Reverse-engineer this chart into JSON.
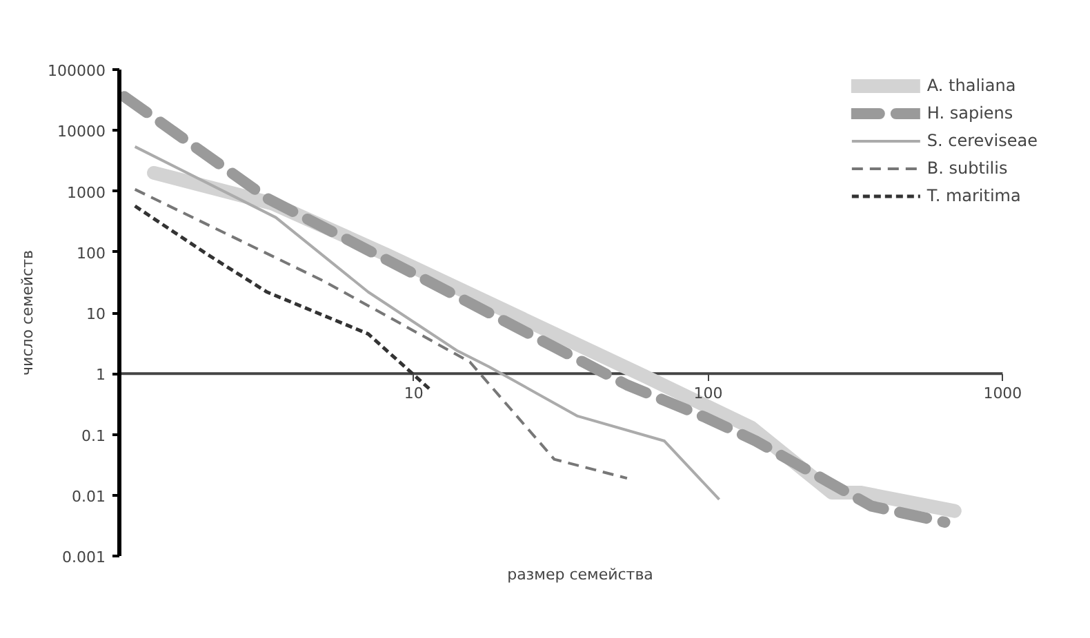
{
  "chart_data": {
    "type": "line",
    "xlabel": "размер семейства",
    "ylabel": "число семейств",
    "log": "xy",
    "xlim": [
      1,
      1000
    ],
    "ylim": [
      0.001,
      100000
    ],
    "xticks": [
      10,
      100,
      1000
    ],
    "yticks": [
      0.001,
      0.01,
      0.1,
      1,
      10,
      100,
      1000,
      10000,
      100000
    ],
    "grid": false,
    "legend": "top right",
    "series": [
      {
        "name": "A. thaliana",
        "color": "#d3d3d3",
        "line_style": "solid",
        "x": [
          1.31,
          3.3,
          8.1,
          61,
          140,
          263,
          331,
          687
        ],
        "values": [
          2000,
          630,
          90,
          0.9,
          0.13,
          0.011,
          0.011,
          0.0055
        ]
      },
      {
        "name": "H. sapiens",
        "color": "#9a9a9a",
        "line_style": "dashed",
        "x": [
          1.04,
          3.2,
          10,
          53,
          98,
          145,
          259,
          359,
          636
        ],
        "values": [
          36000,
          750,
          44,
          0.65,
          0.19,
          0.078,
          0.016,
          0.0066,
          0.0036
        ]
      },
      {
        "name": "S. cereviseae",
        "color": "#ababab",
        "line_style": "solid",
        "x": [
          1.13,
          3.4,
          7.0,
          14,
          18,
          36,
          71,
          109
        ],
        "values": [
          5400,
          370,
          22,
          2.4,
          1.3,
          0.2,
          0.078,
          0.0085
        ]
      },
      {
        "name": "B. subtilis",
        "color": "#777777",
        "line_style": "dashed",
        "x": [
          1.13,
          4.9,
          15.5,
          30,
          53
        ],
        "values": [
          1070,
          34,
          1.56,
          0.039,
          0.019
        ]
      },
      {
        "name": "T. maritima",
        "color": "#333333",
        "line_style": "dashed",
        "x": [
          1.13,
          2.0,
          3.17,
          7.0,
          11.4
        ],
        "values": [
          570,
          90,
          22,
          4.5,
          0.54
        ]
      }
    ]
  }
}
